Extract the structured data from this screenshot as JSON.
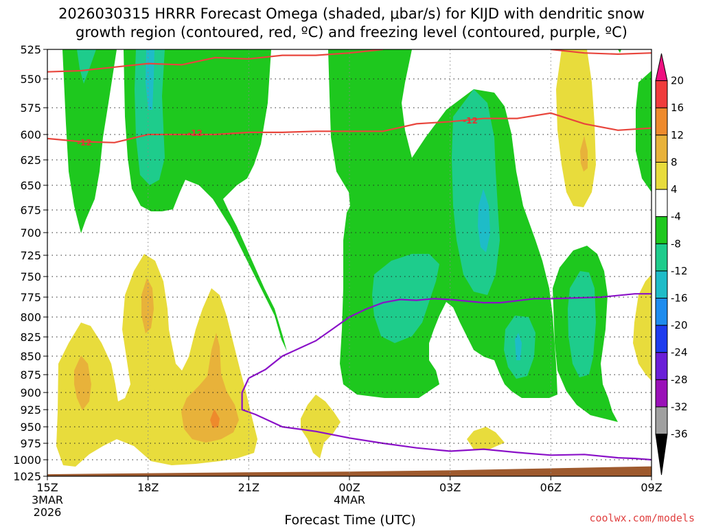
{
  "header": {
    "title_line1": "2026030315 HRRR Forecast Omega (shaded, μbar/s) for KIJD with dendritic snow",
    "title_line2": "growth region (contoured, red, ºC) and freezing level (contoured, purple, ºC)"
  },
  "footer": {
    "xlabel": "Forecast Time (UTC)",
    "credit": "coolwx.com/models"
  },
  "colors": {
    "snow_growth_contour": "#e8453c",
    "freezing_level_contour": "#8a10c8",
    "terrain": "#9e5a2e",
    "grid": "#777777"
  },
  "chart_data": {
    "type": "heatmap",
    "title": "2026030315 HRRR Forecast Omega (shaded, μbar/s) for KIJD with dendritic snow growth region (contoured, red, ºC) and freezing level (contoured, purple, ºC)",
    "xlabel": "Forecast Time (UTC)",
    "ylabel": "",
    "ylim": [
      1025,
      525
    ],
    "y_scale": "pressure (inverted)",
    "grid": true,
    "y_ticks": [
      525,
      550,
      575,
      600,
      625,
      650,
      675,
      700,
      725,
      750,
      775,
      800,
      825,
      850,
      875,
      900,
      925,
      950,
      975,
      1000,
      1025
    ],
    "x_ticks": [
      {
        "label": "15Z",
        "sub1": "3MAR",
        "sub2": "2026",
        "hour": 0
      },
      {
        "label": "18Z",
        "sub1": "",
        "sub2": "",
        "hour": 3
      },
      {
        "label": "21Z",
        "sub1": "",
        "sub2": "",
        "hour": 6
      },
      {
        "label": "00Z",
        "sub1": "4MAR",
        "sub2": "",
        "hour": 9
      },
      {
        "label": "03Z",
        "sub1": "",
        "sub2": "",
        "hour": 12
      },
      {
        "label": "06Z",
        "sub1": "",
        "sub2": "",
        "hour": 15
      },
      {
        "label": "09Z",
        "sub1": "",
        "sub2": "",
        "hour": 18
      }
    ],
    "colorbar": {
      "levels": [
        "20",
        "16",
        "12",
        "8",
        "4",
        "-4",
        "-8",
        "-12",
        "-16",
        "-20",
        "-24",
        "-28",
        "-32",
        "-36"
      ],
      "colors": [
        "#ee1080",
        "#f03c3c",
        "#ee8a2c",
        "#e8b23a",
        "#e8dc3c",
        "#ffffff",
        "#1ec81e",
        "#1ecc8c",
        "#1ebcc8",
        "#1e8cee",
        "#1e3cee",
        "#6a1ed8",
        "#9a10b8",
        "#a0a0a0",
        "#000000"
      ]
    },
    "series": [
      {
        "name": "-12",
        "type": "contour",
        "color": "#e8453c",
        "points": [
          [
            0,
            604
          ],
          [
            1,
            607
          ],
          [
            2,
            608
          ],
          [
            3,
            600
          ],
          [
            4,
            600
          ],
          [
            5,
            600
          ],
          [
            6,
            598
          ],
          [
            7,
            598
          ],
          [
            8,
            597
          ],
          [
            9,
            597
          ],
          [
            10,
            597
          ],
          [
            11,
            590
          ],
          [
            12,
            588
          ],
          [
            13,
            585
          ],
          [
            14,
            585
          ],
          [
            15,
            580
          ],
          [
            16,
            590
          ],
          [
            17,
            596
          ],
          [
            18,
            594
          ]
        ]
      },
      {
        "name": "-12 upper",
        "type": "contour",
        "color": "#e8453c",
        "points": [
          [
            0,
            544
          ],
          [
            1,
            543
          ],
          [
            2,
            540
          ],
          [
            3,
            537
          ],
          [
            4,
            538
          ],
          [
            5,
            532
          ],
          [
            6,
            533
          ],
          [
            7,
            530
          ],
          [
            8,
            530
          ],
          [
            9,
            528
          ],
          [
            10,
            525
          ]
        ]
      },
      {
        "name": "-12 upper right",
        "type": "contour",
        "color": "#e8453c",
        "points": [
          [
            15,
            525
          ],
          [
            16,
            528
          ],
          [
            17,
            529
          ],
          [
            18,
            528
          ]
        ]
      },
      {
        "name": "0",
        "type": "contour",
        "color": "#8a10c8",
        "points": [
          [
            18,
            771
          ],
          [
            17.5,
            771
          ],
          [
            16.5,
            775
          ],
          [
            15,
            777
          ],
          [
            14.5,
            777
          ],
          [
            13.5,
            782
          ],
          [
            13,
            782
          ],
          [
            12,
            778
          ],
          [
            11.5,
            777
          ],
          [
            11,
            779
          ],
          [
            10.5,
            778
          ],
          [
            10,
            782
          ],
          [
            9.5,
            790
          ],
          [
            9,
            800
          ],
          [
            8.5,
            815
          ],
          [
            8,
            830
          ],
          [
            7.5,
            840
          ],
          [
            7,
            850
          ],
          [
            6.5,
            868
          ],
          [
            6,
            880
          ],
          [
            5.8,
            900
          ],
          [
            5.8,
            925
          ],
          [
            6.2,
            932
          ],
          [
            7,
            950
          ],
          [
            8,
            957
          ],
          [
            9,
            967
          ],
          [
            10,
            975
          ],
          [
            11,
            982
          ],
          [
            12,
            987
          ],
          [
            13,
            984
          ],
          [
            14,
            989
          ],
          [
            15,
            993
          ],
          [
            16,
            992
          ],
          [
            17,
            997
          ],
          [
            17.5,
            998
          ],
          [
            18,
            1000
          ]
        ]
      }
    ],
    "terrain": {
      "name": "surface",
      "color": "#9e5a2e",
      "points": [
        [
          0,
          1022
        ],
        [
          6,
          1019
        ],
        [
          9,
          1018
        ],
        [
          12,
          1016
        ],
        [
          15,
          1013
        ],
        [
          18,
          1010
        ]
      ]
    }
  }
}
